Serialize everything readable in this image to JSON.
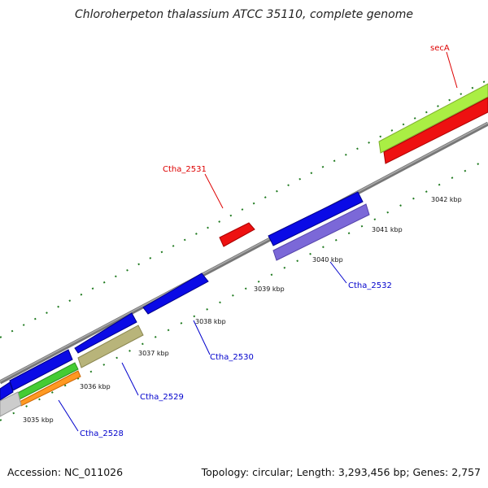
{
  "title": "Chloroherpeton thalassium ATCC 35110, complete genome",
  "accession": "Accession: NC_011026",
  "summary": "Topology: circular; Length: 3,293,456 bp; Genes: 2,757",
  "colors": {
    "backbone": "#8c8c8c",
    "tick": "#1f7a1f",
    "forward_gene": "#0a0ae6",
    "label_forward": "#0000cc",
    "label_highlight": "#dd0000",
    "red_gene": "#ee1111",
    "lime_gene": "#aaee44",
    "khaki_gene": "#b8b47a",
    "slate_gene": "#7b68d8",
    "green_gene": "#44cc33",
    "orange_gene": "#ff9922",
    "grey_gene": "#cccccc"
  },
  "scale_labels": [
    "3035 kbp",
    "3036 kbp",
    "3037 kbp",
    "3038 kbp",
    "3039 kbp",
    "3040 kbp",
    "3041 kbp",
    "3042 kbp"
  ],
  "gene_labels": {
    "secA": "secA",
    "ctha_2531": "Ctha_2531",
    "ctha_2532": "Ctha_2532",
    "ctha_2530": "Ctha_2530",
    "ctha_2529": "Ctha_2529",
    "ctha_2528": "Ctha_2528"
  }
}
